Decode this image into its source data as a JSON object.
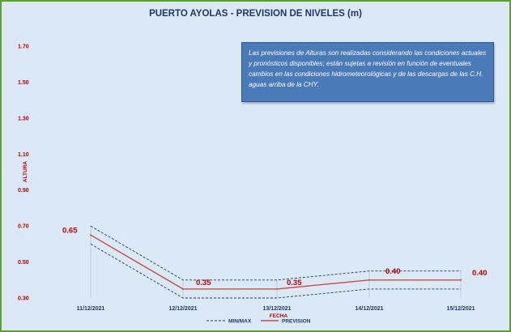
{
  "chart_data": {
    "type": "line",
    "title": "PUERTO AYOLAS - PREVISION DE NIVELES (m)",
    "xlabel": "FECHA",
    "ylabel": "ALTURA",
    "categories": [
      "11/12/2021",
      "12/12/2021",
      "13/12/2021",
      "14/12/2021",
      "15/12/2021"
    ],
    "ylim": [
      0.3,
      1.7
    ],
    "yticks": [
      "0.30",
      "0.50",
      "0.70",
      "0.90",
      "1.10",
      "1.30",
      "1.50",
      "1.70"
    ],
    "series": [
      {
        "name": "PREVISION",
        "values": [
          0.65,
          0.35,
          0.35,
          0.4,
          0.4
        ],
        "labels": [
          "0.65",
          "0.35",
          "0.35",
          "0.40",
          "0.40"
        ],
        "color": "#c0504d"
      },
      {
        "name": "MIN/MAX",
        "upper": [
          0.7,
          0.4,
          0.4,
          0.45,
          0.45
        ],
        "lower": [
          0.6,
          0.3,
          0.3,
          0.35,
          0.35
        ],
        "color": "#1f3864"
      }
    ],
    "legend": "bottom",
    "grid": false,
    "annotation": "Las previsiones de Alturas son realizadas considerando las condiciones actuales y pronósticos disponibles;  están sujetas a revisión en función de eventuales cambios en las condiciones hidrometeorológicas y de las descargas de las C.H. aguas arriba de la CHY."
  },
  "colors": {
    "frame": "#5aa02c",
    "plot_background": "#dbe8f6",
    "note_background": "#4a7ab8",
    "title": "#1f3864"
  }
}
